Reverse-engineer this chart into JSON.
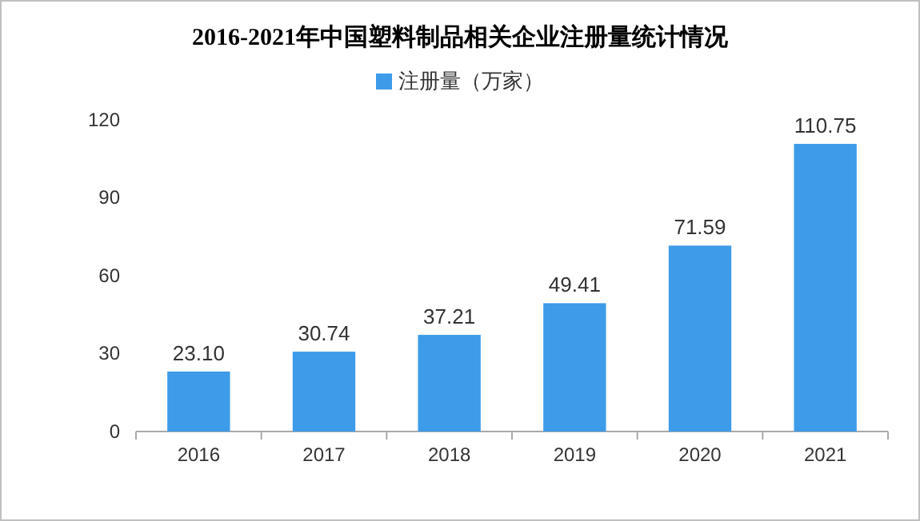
{
  "chart_data": {
    "type": "bar",
    "title": "2016-2021年中国塑料制品相关企业注册量统计情况",
    "categories": [
      "2016",
      "2017",
      "2018",
      "2019",
      "2020",
      "2021"
    ],
    "series": [
      {
        "name": "注册量（万家）",
        "color": "#3d9be9",
        "values": [
          23.1,
          30.74,
          37.21,
          49.41,
          71.59,
          110.75
        ]
      }
    ],
    "value_labels": [
      "23.10",
      "30.74",
      "37.21",
      "49.41",
      "71.59",
      "110.75"
    ],
    "ylim": [
      0,
      120
    ],
    "yticks": [
      0,
      30,
      60,
      90,
      120
    ],
    "grid": false,
    "legend": "top"
  }
}
